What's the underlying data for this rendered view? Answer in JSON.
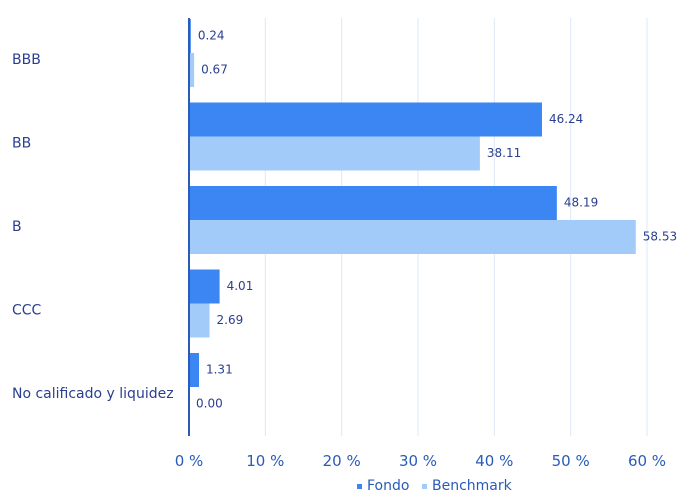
{
  "chart_data": {
    "type": "bar",
    "orientation": "horizontal",
    "categories": [
      "BBB",
      "BB",
      "B",
      "CCC",
      "No calificado y liquidez"
    ],
    "series": [
      {
        "name": "Fondo",
        "values": [
          0.24,
          46.24,
          48.19,
          4.01,
          1.31
        ],
        "color": "#3b86f2"
      },
      {
        "name": "Benchmark",
        "values": [
          0.67,
          38.11,
          58.53,
          2.69,
          0.0
        ],
        "color": "#a3cbfa"
      }
    ],
    "data_labels": [
      [
        "0.24",
        "46.24",
        "48.19",
        "4.01",
        "1.31"
      ],
      [
        "0.67",
        "38.11",
        "58.53",
        "2.69",
        "0.00"
      ]
    ],
    "xlim": [
      0,
      60
    ],
    "x_ticks": [
      {
        "value": 0,
        "label": "0 %"
      },
      {
        "value": 10,
        "label": "10 %"
      },
      {
        "value": 20,
        "label": "20 %"
      },
      {
        "value": 30,
        "label": "30 %"
      },
      {
        "value": 40,
        "label": "40 %"
      },
      {
        "value": 50,
        "label": "50 %"
      },
      {
        "value": 60,
        "label": "60 %"
      }
    ],
    "grid": true,
    "legend_position": "bottom-center",
    "axis_color": "#2a5bb8",
    "grid_color": "#dce9f7"
  }
}
